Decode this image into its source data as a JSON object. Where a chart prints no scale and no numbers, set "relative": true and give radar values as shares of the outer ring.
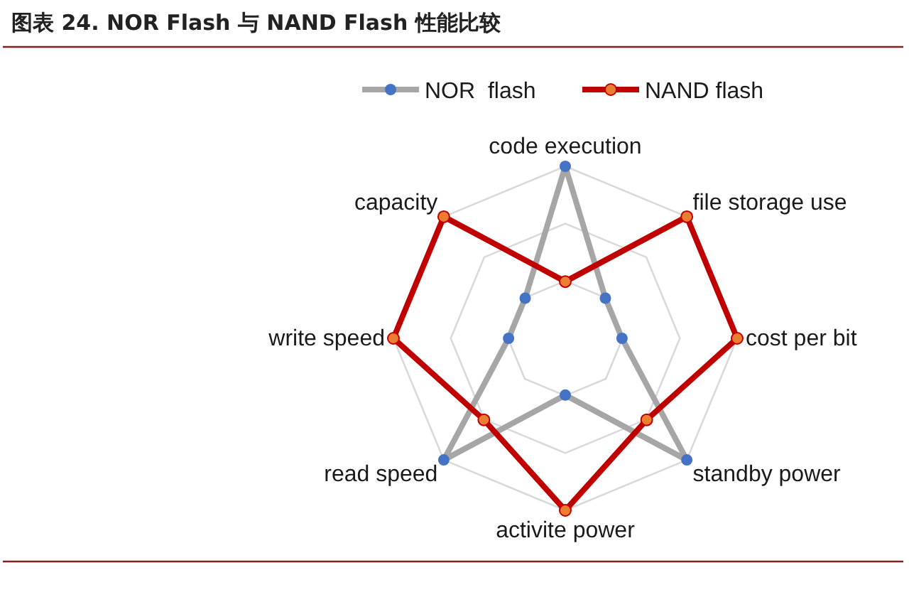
{
  "chart_data": {
    "type": "radar",
    "title": "图表 24. NOR Flash 与 NAND Flash 性能比较",
    "relative": true,
    "categories": [
      "code execution",
      "file storage use",
      "cost per bit",
      "standby power",
      "activite power",
      "read speed",
      "write speed",
      "capacity"
    ],
    "series": [
      {
        "name": "NOR  flash",
        "color": "#a6a6a6",
        "values": [
          1,
          0.33,
          0.33,
          1,
          0.33,
          1,
          0.33,
          0.33
        ]
      },
      {
        "name": "NAND flash",
        "color": "#c00000",
        "values": [
          0.33,
          1,
          1,
          0.67,
          1,
          0.67,
          1,
          1
        ]
      }
    ],
    "grid": true,
    "legend": "top",
    "marker": "circle"
  }
}
